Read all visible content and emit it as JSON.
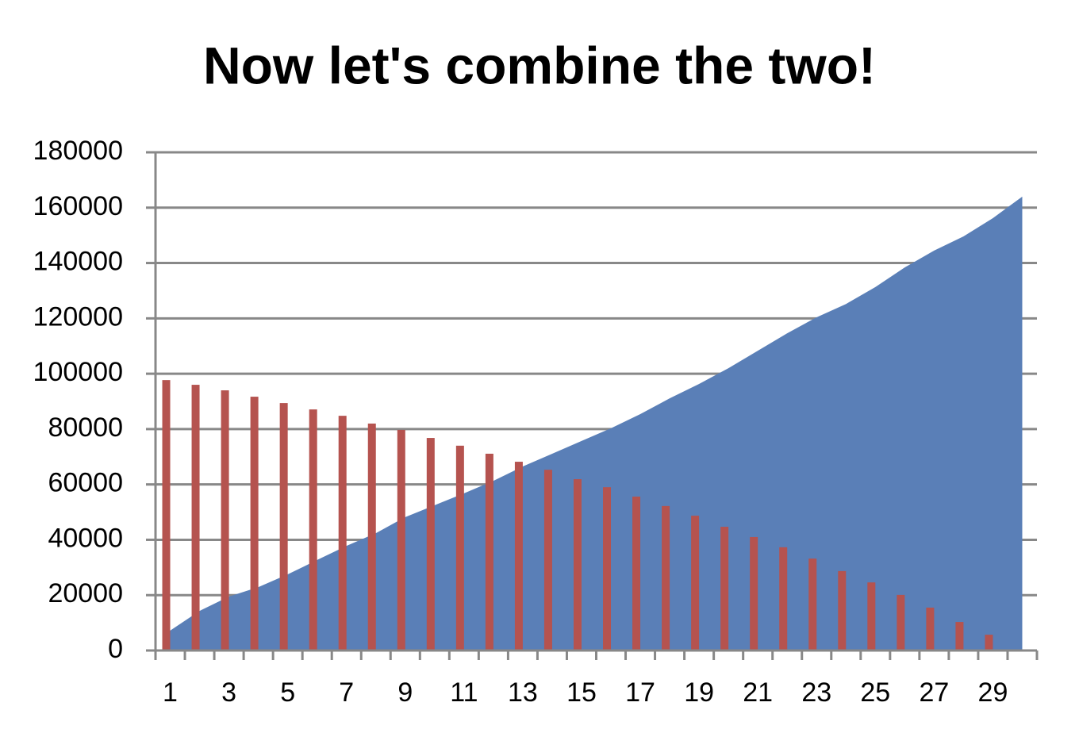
{
  "chart_data": {
    "type": "combo",
    "title": "Now let's combine the two!",
    "categories": [
      "1",
      null,
      "3",
      null,
      "5",
      null,
      "7",
      null,
      "9",
      null,
      "11",
      null,
      "13",
      null,
      "15",
      null,
      "17",
      null,
      "19",
      null,
      "21",
      null,
      "23",
      null,
      "25",
      null,
      "27",
      null,
      "29",
      null
    ],
    "series": [
      {
        "type": "area",
        "color": "#5a7fb7",
        "values": [
          7200,
          14300,
          19500,
          22900,
          27500,
          32700,
          37800,
          42400,
          48200,
          52500,
          56800,
          61300,
          66500,
          71100,
          75700,
          80300,
          85400,
          91100,
          96300,
          102000,
          108300,
          114600,
          120400,
          125200,
          131300,
          138400,
          144500,
          149600,
          156200,
          164000
        ]
      },
      {
        "type": "bar",
        "color": "#b5534f",
        "values": [
          97700,
          96000,
          94000,
          91700,
          89400,
          87100,
          84800,
          82000,
          79700,
          76800,
          74000,
          71100,
          68200,
          65300,
          61900,
          59000,
          55600,
          52200,
          48700,
          44700,
          41000,
          37300,
          33200,
          28700,
          24600,
          20100,
          15500,
          10300,
          5700,
          null
        ]
      }
    ],
    "ylim": [
      0,
      180000
    ],
    "yticks": [
      0,
      20000,
      40000,
      60000,
      80000,
      100000,
      120000,
      140000,
      160000,
      180000
    ],
    "grid": true
  }
}
